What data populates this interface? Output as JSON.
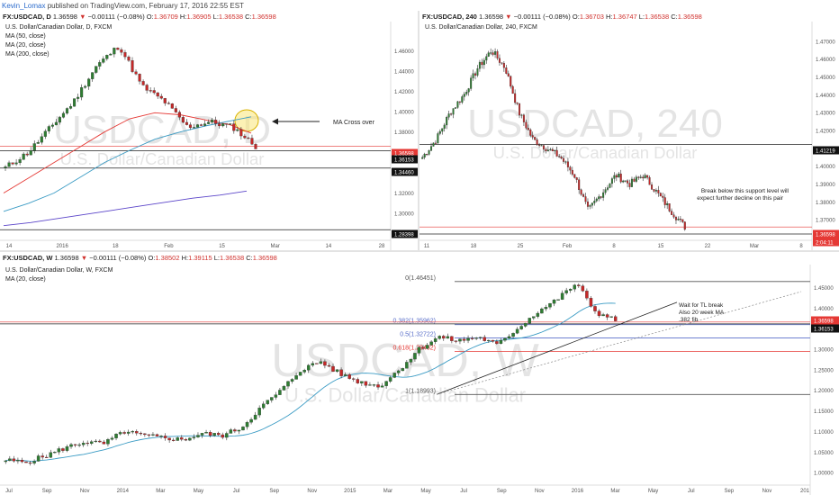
{
  "publisher": {
    "user": "Kevin_Lomax",
    "text": " published on TradingView.com, February 17, 2016 22:55 EST"
  },
  "panes": [
    {
      "id": "daily",
      "symbol": "FX:USDCAD, D",
      "quote": {
        "last": "1.36598",
        "arrow": "▼",
        "change": "−0.00111 (−0.08%)",
        "o": "1.36709",
        "h": "1.36905",
        "l": "1.36538",
        "c": "1.36598"
      },
      "title": "U.S. Dollar/Canadian Dollar, D, FXCM",
      "studies": [
        "MA (50, close)",
        "MA (20, close)",
        "MA (200, close)"
      ],
      "watermark": {
        "symbol": "USDCAD, D",
        "name": "U.S. Dollar/Canadian Dollar"
      },
      "annotations": [
        {
          "text": "MA Cross over"
        }
      ],
      "levels": [
        {
          "label": "1.36598",
          "color": "#e53935"
        },
        {
          "label": "1.36153",
          "color": "#111111"
        },
        {
          "label": "1.34460",
          "color": "#111111"
        },
        {
          "label": "1.28398",
          "color": "#111111"
        }
      ],
      "chart_data": {
        "type": "candlestick",
        "yticks": [
          "1.46000",
          "1.44000",
          "1.42000",
          "1.40000",
          "1.38000",
          "1.36000",
          "1.34000",
          "1.32000",
          "1.30000",
          "1.28000"
        ],
        "ylim": [
          1.278,
          1.478
        ],
        "xticks": [
          "14",
          "2016",
          "18",
          "Feb",
          "15",
          "Mar",
          "14",
          "28"
        ],
        "series": [
          {
            "name": "MA (50, close)",
            "color": "#e53935"
          },
          {
            "name": "MA (20, close)",
            "color": "#3a9bc4"
          },
          {
            "name": "MA (200, close)",
            "color": "#5b45c9"
          }
        ]
      }
    },
    {
      "id": "h4",
      "symbol": "FX:USDCAD, 240",
      "quote": {
        "last": "1.36598",
        "arrow": "▼",
        "change": "−0.00111 (−0.08%)",
        "o": "1.36703",
        "h": "1.36747",
        "l": "1.36538",
        "c": "1.36598"
      },
      "title": "U.S. Dollar/Canadian Dollar, 240, FXCM",
      "studies": [],
      "watermark": {
        "symbol": "USDCAD, 240",
        "name": "U.S. Dollar/Canadian Dollar"
      },
      "annotations": [
        {
          "text": "Break below this support level will"
        },
        {
          "text": "expect further decline on this pair"
        }
      ],
      "levels": [
        {
          "label": "1.41219",
          "color": "#111111"
        },
        {
          "label": "1.36598",
          "color": "#e53935"
        },
        {
          "label": "2:04:11",
          "color": "#e53935"
        }
      ],
      "chart_data": {
        "type": "candlestick",
        "yticks": [
          "1.47000",
          "1.46000",
          "1.45000",
          "1.44000",
          "1.43000",
          "1.42000",
          "1.41000",
          "1.40000",
          "1.39000",
          "1.38000",
          "1.37000"
        ],
        "ylim": [
          1.36,
          1.475
        ],
        "xticks": [
          "11",
          "18",
          "25",
          "Feb",
          "8",
          "15",
          "22",
          "Mar",
          "8"
        ]
      }
    },
    {
      "id": "weekly",
      "symbol": "FX:USDCAD, W",
      "quote": {
        "last": "1.36598",
        "arrow": "▼",
        "change": "−0.00111 (−0.08%)",
        "o": "1.38502",
        "h": "1.39115",
        "l": "1.36538",
        "c": "1.36598"
      },
      "title": "U.S. Dollar/Canadian Dollar, W, FXCM",
      "studies": [
        "MA (20, close)"
      ],
      "watermark": {
        "symbol": "USDCAD, W",
        "name": "U.S. Dollar/Canadian Dollar"
      },
      "annotations": [
        {
          "text": "Wait for TL break"
        },
        {
          "text": "Also 20 week MA"
        },
        {
          "text": ".382 fib"
        }
      ],
      "fib": [
        {
          "label": "0(1.46451)",
          "color": "#555555"
        },
        {
          "label": "0.382(1.35962)",
          "color": "#5a6fc9"
        },
        {
          "label": "0.5(1.32722)",
          "color": "#5a6fc9"
        },
        {
          "label": "0.618(1.29482)",
          "color": "#e53935"
        },
        {
          "label": "1(1.18993)",
          "color": "#555555"
        }
      ],
      "levels": [
        {
          "label": "1.36598",
          "color": "#e53935"
        },
        {
          "label": "1.36153",
          "color": "#111111"
        }
      ],
      "chart_data": {
        "type": "candlestick",
        "yticks": [
          "1.45000",
          "1.40000",
          "1.35000",
          "1.30000",
          "1.25000",
          "1.20000",
          "1.15000",
          "1.10000",
          "1.05000",
          "1.00000"
        ],
        "ylim": [
          0.985,
          1.475
        ],
        "xticks": [
          "Jul",
          "Sep",
          "Nov",
          "2014",
          "Mar",
          "May",
          "Jul",
          "Sep",
          "Nov",
          "2015",
          "Mar",
          "May",
          "Jul",
          "Sep",
          "Nov",
          "2016",
          "Mar",
          "May",
          "Jul",
          "Sep",
          "Nov",
          "201"
        ],
        "series": [
          {
            "name": "MA (20, close)",
            "color": "#3a9bc4"
          }
        ]
      }
    }
  ],
  "colors": {
    "up": "#2e7d32",
    "down": "#c62828",
    "axis": "#555555",
    "grid": "#eeeeee",
    "watermark": "#e4e4e4"
  }
}
